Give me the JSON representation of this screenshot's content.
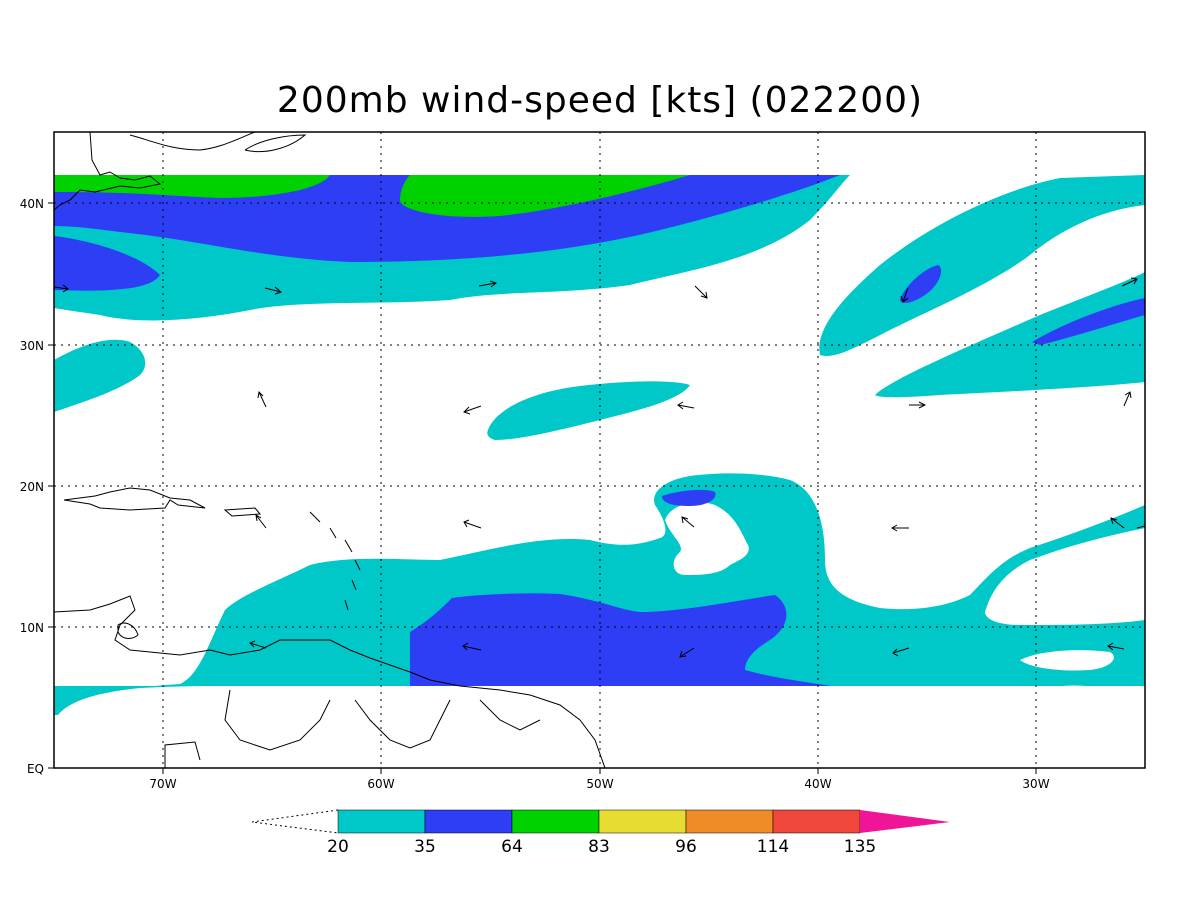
{
  "title": "200mb wind-speed [kts] (022200)",
  "lat_labels": [
    "40N",
    "30N",
    "20N",
    "10N",
    "EQ"
  ],
  "lon_labels": [
    "70W",
    "60W",
    "50W",
    "40W",
    "30W"
  ],
  "colorbar": {
    "labels": [
      "20",
      "35",
      "64",
      "83",
      "96",
      "114",
      "135"
    ],
    "colors": [
      "#00c8c8",
      "#2e3ef5",
      "#00d200",
      "#e6dc32",
      "#f08c28",
      "#f0463c",
      "#f01496"
    ]
  },
  "map_colors": {
    "cyan": "#00c8c8",
    "blue": "#2e3ef5",
    "green": "#00d200",
    "coast": "#000000"
  }
}
